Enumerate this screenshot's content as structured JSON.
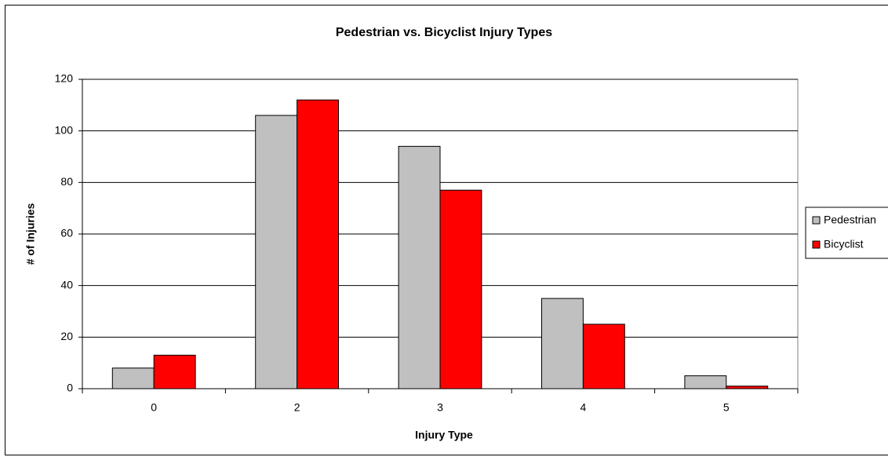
{
  "chart_data": {
    "type": "bar",
    "title": "Pedestrian vs. Bicyclist Injury Types",
    "x_label": "Injury Type",
    "y_label": "# of Injuries",
    "categories": [
      "0",
      "2",
      "3",
      "4",
      "5"
    ],
    "series": [
      {
        "name": "Pedestrian",
        "color": "#c0c0c0",
        "values": [
          8,
          106,
          94,
          35,
          5
        ]
      },
      {
        "name": "Bicyclist",
        "color": "#ff0000",
        "values": [
          13,
          112,
          77,
          25,
          1
        ]
      }
    ],
    "ylim": [
      0,
      120
    ],
    "yticks": [
      0,
      20,
      40,
      60,
      80,
      100,
      120
    ],
    "grid": true,
    "legend": "right"
  }
}
